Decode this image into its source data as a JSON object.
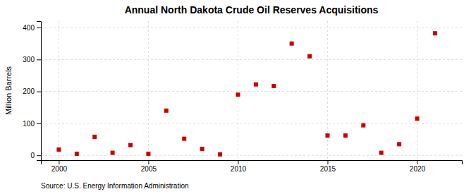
{
  "chart_data": {
    "type": "scatter",
    "title": "Annual North Dakota Crude Oil Reserves Acquisitions",
    "ylabel": "Million Barrels",
    "source": "Source: U.S. Energy Information Administration",
    "x": [
      2000,
      2001,
      2002,
      2003,
      2004,
      2005,
      2006,
      2007,
      2008,
      2009,
      2010,
      2011,
      2012,
      2013,
      2014,
      2015,
      2016,
      2017,
      2018,
      2019,
      2020,
      2021
    ],
    "values": [
      18,
      5,
      58,
      8,
      32,
      5,
      140,
      52,
      20,
      3,
      190,
      222,
      217,
      350,
      310,
      62,
      62,
      94,
      8,
      35,
      115,
      382
    ],
    "color": "#cc0000",
    "marker": "square",
    "xlim": [
      1999,
      2022.5
    ],
    "ylim": [
      -15,
      420
    ],
    "xticks": [
      2000,
      2005,
      2010,
      2015,
      2020
    ],
    "yticks": [
      0,
      100,
      200,
      300,
      400
    ],
    "grid": true
  }
}
